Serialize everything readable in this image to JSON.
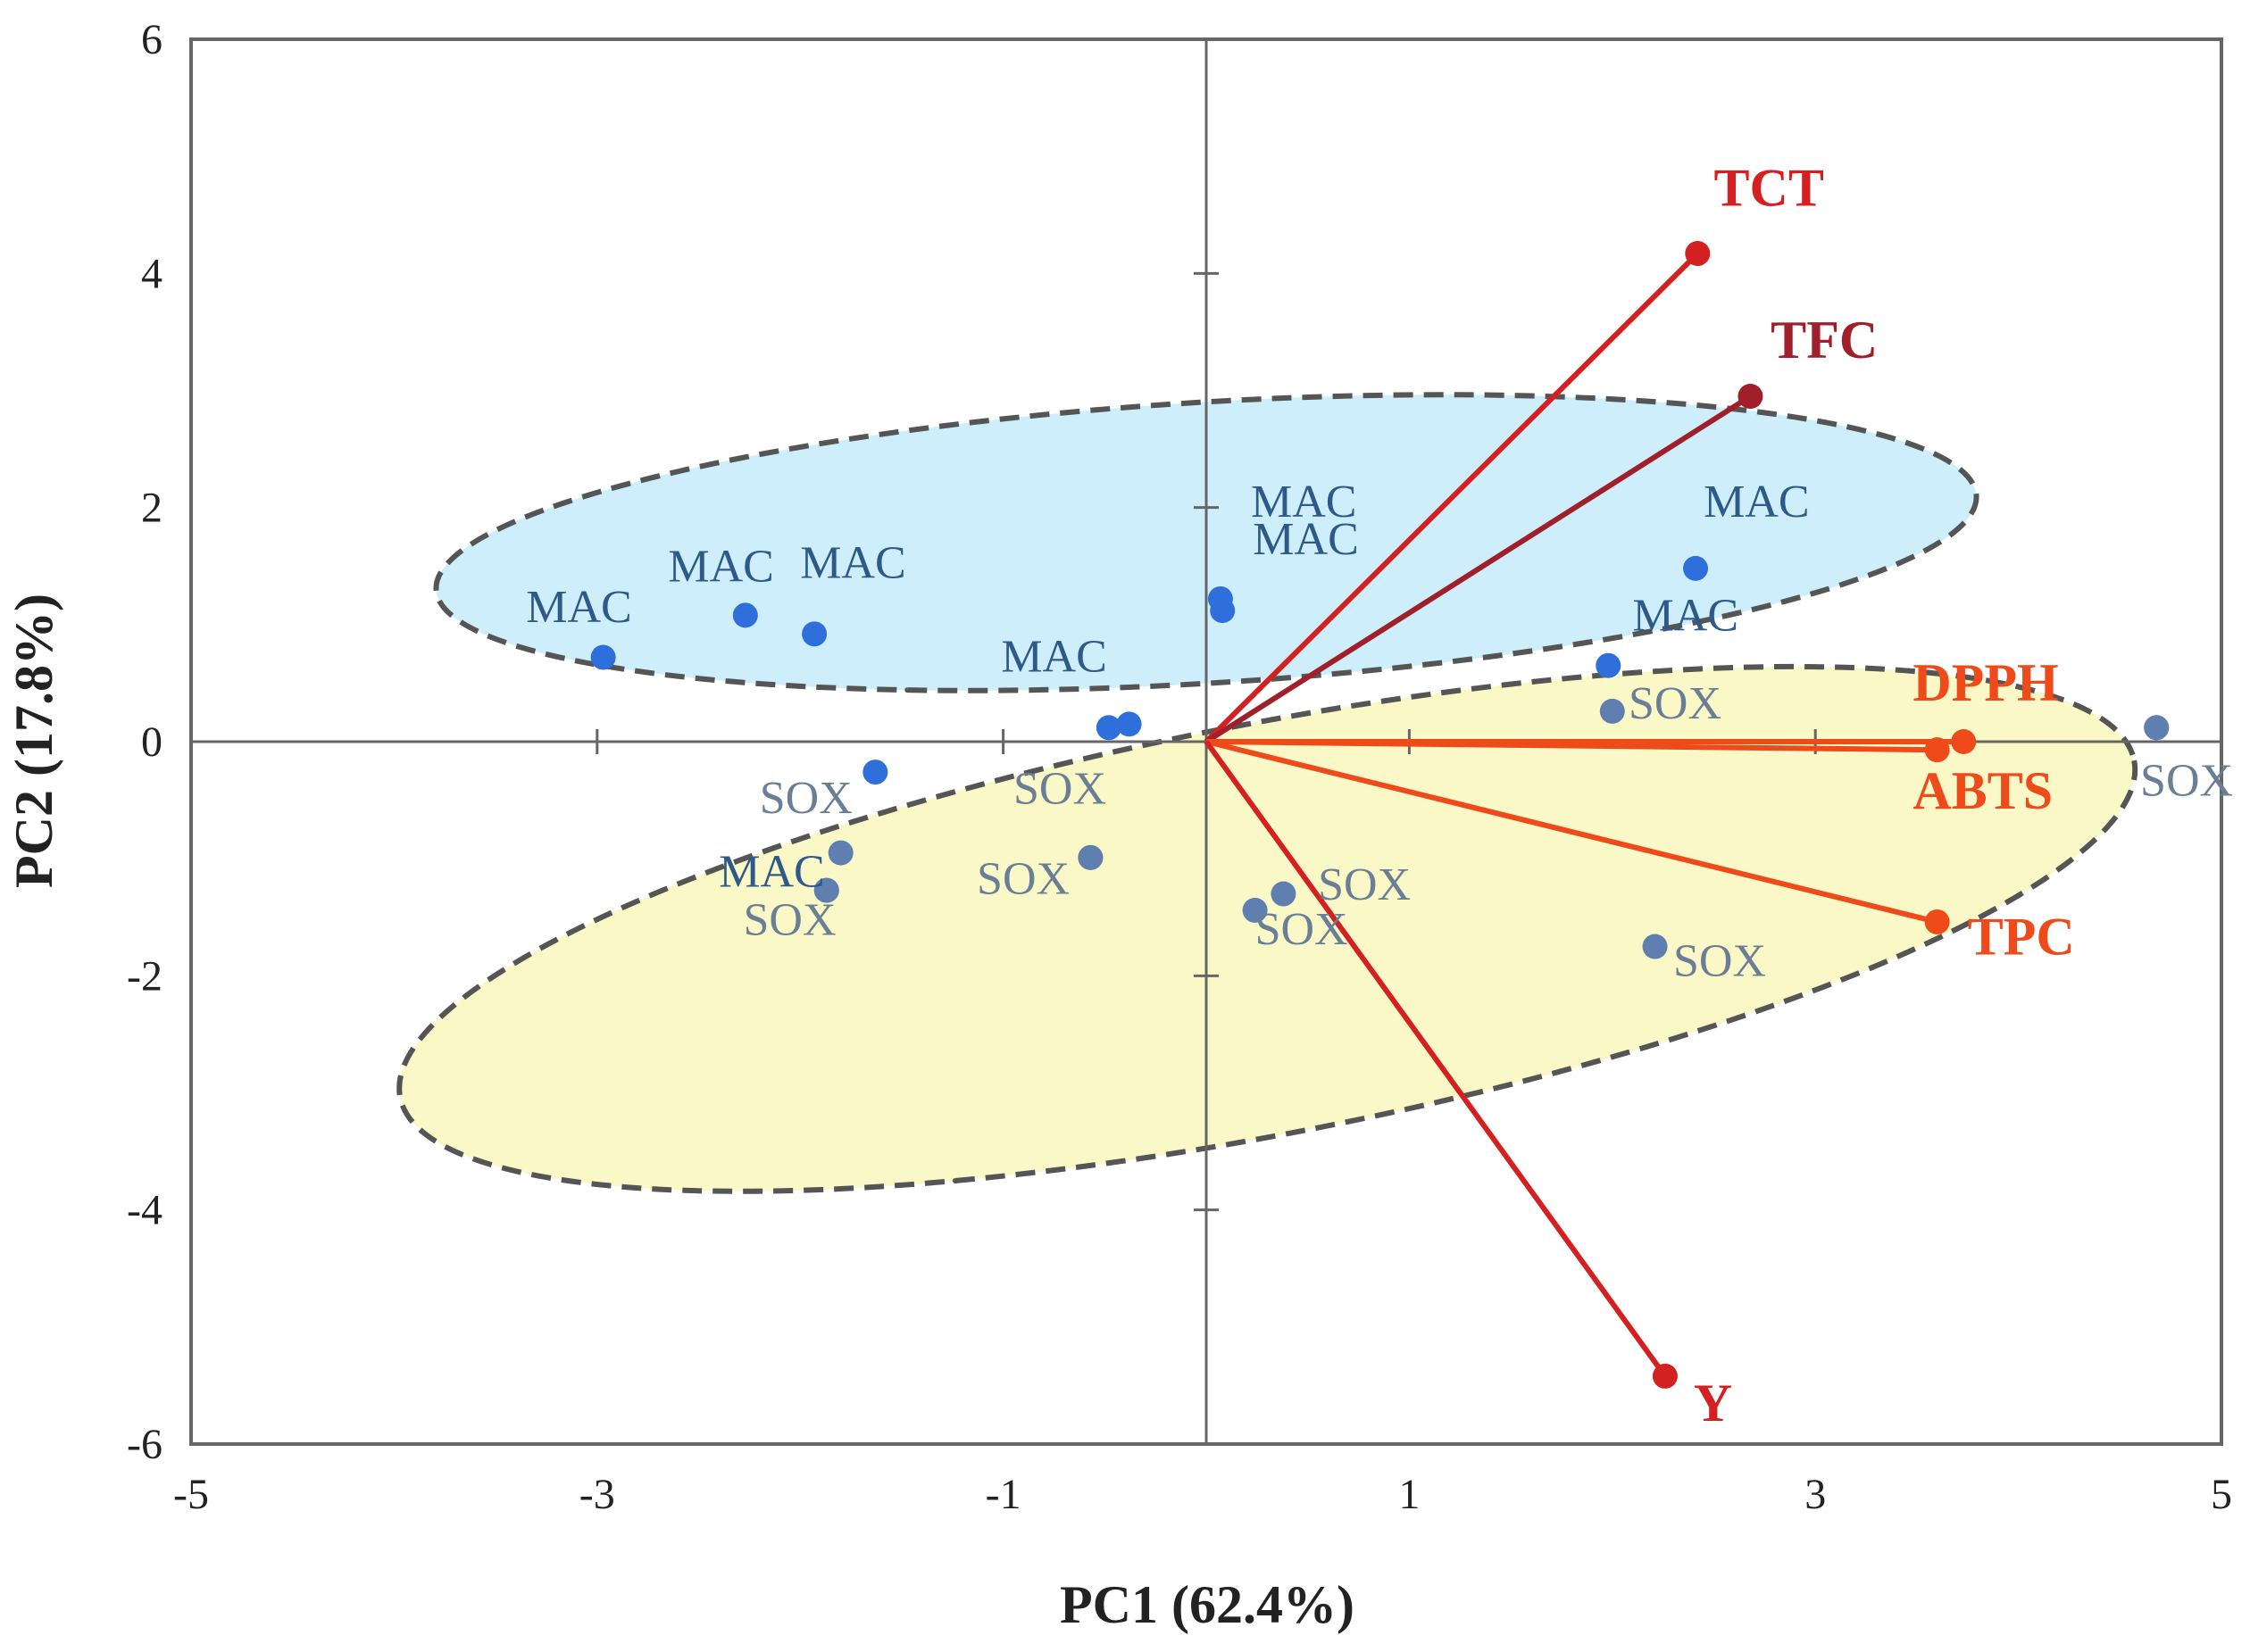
{
  "chart_data": {
    "type": "scatter",
    "subtype": "pca-biplot",
    "title": "",
    "xlabel": "PC1 (62.4%)",
    "ylabel": "PC2 (17.8%)",
    "xlim": [
      -5,
      5
    ],
    "ylim": [
      -6,
      6
    ],
    "x_ticks": [
      -5,
      -3,
      -1,
      1,
      3,
      5
    ],
    "y_ticks": [
      -6,
      -4,
      -2,
      0,
      2,
      4,
      6
    ],
    "grid": false,
    "colors": {
      "mac_point": "#2f6fdc",
      "sox_point": "#5f7fb0",
      "mac_label": "#2e5a8a",
      "sox_label": "#6a7f96",
      "vector_red": "#d42020",
      "vector_dark": "#a01f2a",
      "vector_orange": "#ef4a1a",
      "ellipse_mac_fill": "#cdeefa",
      "ellipse_sox_fill": "#fbf8c8",
      "ellipse_stroke": "#555555",
      "axis": "#666666"
    },
    "ellipses": [
      {
        "group": "MAC",
        "center": [
          0.0,
          1.7
        ],
        "rx": 3.8,
        "ry": 1.2,
        "angle_deg": 3.5
      },
      {
        "group": "SOX",
        "center": [
          0.3,
          -1.6
        ],
        "rx": 4.35,
        "ry": 1.75,
        "angle_deg": 11
      }
    ],
    "observations": [
      {
        "group": "MAC",
        "label": "MAC",
        "x": -2.97,
        "y": 0.72,
        "lx": -3.35,
        "ly": 1.02
      },
      {
        "group": "MAC",
        "label": "MAC",
        "x": -2.27,
        "y": 1.08,
        "lx": -2.65,
        "ly": 1.37
      },
      {
        "group": "MAC",
        "label": "MAC",
        "x": -1.93,
        "y": 0.92,
        "lx": -2.0,
        "ly": 1.4
      },
      {
        "group": "MAC",
        "label": "MAC",
        "x": 0.07,
        "y": 1.22,
        "lx": 0.22,
        "ly": 1.92
      },
      {
        "group": "MAC",
        "label": "MAC",
        "x": 0.08,
        "y": 1.12,
        "lx": 0.23,
        "ly": 1.6
      },
      {
        "group": "MAC",
        "label": "MAC",
        "x": 2.41,
        "y": 1.48,
        "lx": 2.45,
        "ly": 1.92
      },
      {
        "group": "MAC",
        "label": "MAC",
        "x": 1.98,
        "y": 0.65,
        "lx": 2.1,
        "ly": 0.95
      },
      {
        "group": "MAC",
        "label": "MAC",
        "x": -0.48,
        "y": 0.12,
        "lx": -1.01,
        "ly": 0.6
      },
      {
        "group": "MAC",
        "label": "",
        "x": -0.38,
        "y": 0.15,
        "lx": 0,
        "ly": 0
      },
      {
        "group": "MAC",
        "label": "",
        "x": -1.63,
        "y": -0.26,
        "lx": 0,
        "ly": 0
      },
      {
        "group": "MAC",
        "label": "",
        "x": 4.68,
        "y": 0.12,
        "lx": 0,
        "ly": 0
      },
      {
        "group": "SOX",
        "label": "SOX",
        "x": 2.0,
        "y": 0.26,
        "lx": 2.08,
        "ly": 0.2
      },
      {
        "group": "SOX",
        "label": "SOX",
        "x": -1.8,
        "y": -0.95,
        "lx": -2.2,
        "ly": -0.61
      },
      {
        "group": "SOX",
        "label": "MAC",
        "x": -1.87,
        "y": -1.27,
        "lx": -2.4,
        "ly": -1.24
      },
      {
        "group": "SOX",
        "label": "SOX",
        "x": -1.87,
        "y": -1.27,
        "lx": -2.28,
        "ly": -1.65
      },
      {
        "group": "SOX",
        "label": "SOX",
        "x": -0.57,
        "y": -0.99,
        "lx": -0.95,
        "ly": -0.53
      },
      {
        "group": "SOX",
        "label": "SOX",
        "x": -0.57,
        "y": -0.99,
        "lx": -1.13,
        "ly": -1.3
      },
      {
        "group": "SOX",
        "label": "SOX",
        "x": 0.38,
        "y": -1.3,
        "lx": 0.55,
        "ly": -1.35
      },
      {
        "group": "SOX",
        "label": "SOX",
        "x": 0.24,
        "y": -1.44,
        "lx": 0.24,
        "ly": -1.73
      },
      {
        "group": "SOX",
        "label": "SOX",
        "x": 2.21,
        "y": -1.75,
        "lx": 2.3,
        "ly": -2.0
      },
      {
        "group": "SOX",
        "label": "SOX",
        "x": 4.68,
        "y": 0.12,
        "lx": 4.6,
        "ly": -0.46
      }
    ],
    "vectors": [
      {
        "label": "TCT",
        "x": 2.42,
        "y": 4.17,
        "lx": 2.5,
        "ly": 4.58,
        "color": "vector_red"
      },
      {
        "label": "TFC",
        "x": 2.68,
        "y": 2.95,
        "lx": 2.78,
        "ly": 3.28,
        "color": "vector_dark"
      },
      {
        "label": "DPPH",
        "x": 3.73,
        "y": 0.0,
        "lx": 3.48,
        "ly": 0.35,
        "color": "vector_orange"
      },
      {
        "label": "ABTS",
        "x": 3.6,
        "y": -0.07,
        "lx": 3.48,
        "ly": -0.57,
        "color": "vector_orange"
      },
      {
        "label": "TPC",
        "x": 3.6,
        "y": -1.54,
        "lx": 3.75,
        "ly": -1.82,
        "color": "vector_orange"
      },
      {
        "label": "Y",
        "x": 2.26,
        "y": -5.42,
        "lx": 2.4,
        "ly": -5.8,
        "color": "vector_red"
      }
    ]
  }
}
